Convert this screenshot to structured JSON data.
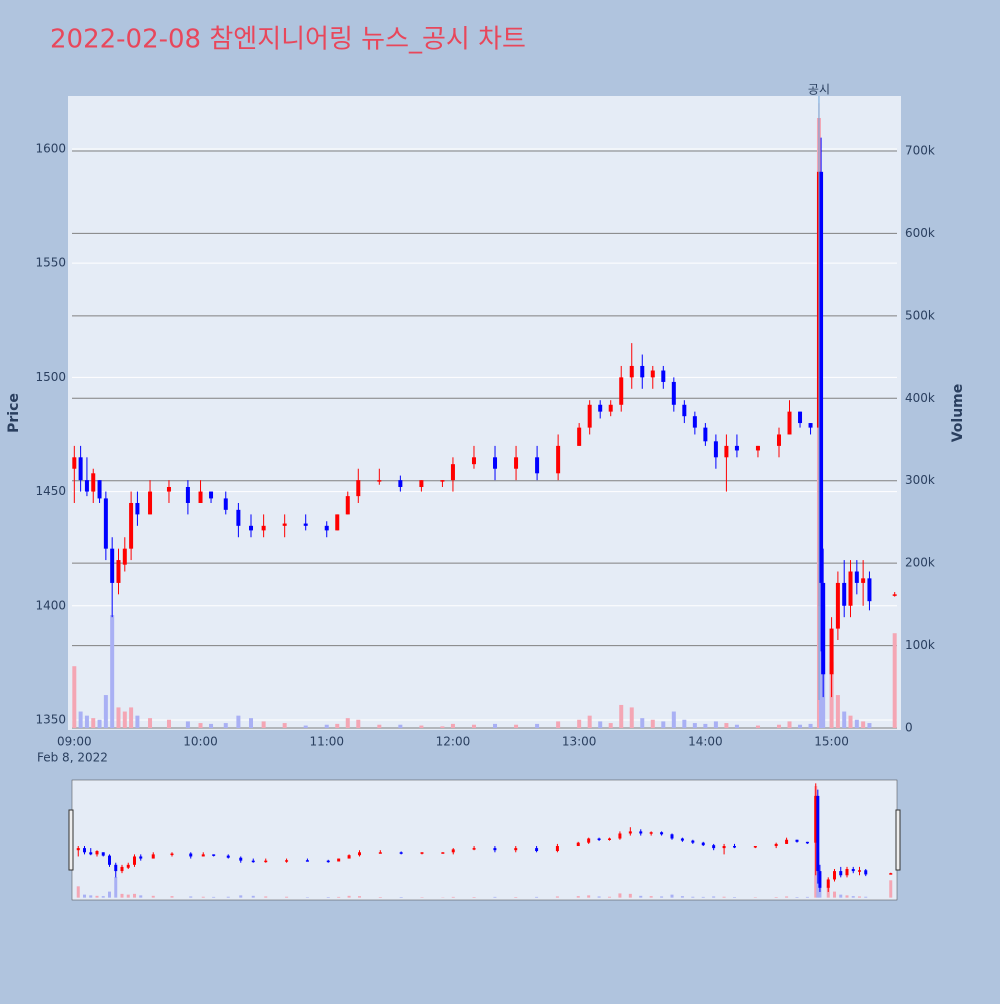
{
  "chart_data": {
    "type": "candlestick",
    "title": "2022-02-08 참엔지니어링 뉴스_공시 차트",
    "y_label": "Price",
    "y2_label": "Volume",
    "x_date_label": "Feb 8, 2022",
    "x": [
      "09:00",
      "09:03",
      "09:06",
      "09:09",
      "09:12",
      "09:15",
      "09:18",
      "09:21",
      "09:24",
      "09:27",
      "09:30",
      "09:36",
      "09:45",
      "09:54",
      "10:00",
      "10:05",
      "10:12",
      "10:18",
      "10:24",
      "10:30",
      "10:40",
      "10:50",
      "11:00",
      "11:05",
      "11:10",
      "11:15",
      "11:25",
      "11:35",
      "11:45",
      "11:55",
      "12:00",
      "12:10",
      "12:20",
      "12:30",
      "12:40",
      "12:50",
      "13:00",
      "13:05",
      "13:10",
      "13:15",
      "13:20",
      "13:25",
      "13:30",
      "13:35",
      "13:40",
      "13:45",
      "13:50",
      "13:55",
      "14:00",
      "14:05",
      "14:10",
      "14:15",
      "14:25",
      "14:35",
      "14:40",
      "14:45",
      "14:50",
      "14:54",
      "14:55",
      "14:56",
      "15:00",
      "15:03",
      "15:06",
      "15:09",
      "15:12",
      "15:15",
      "15:18",
      "15:30"
    ],
    "open": [
      1460,
      1465,
      1455,
      1450,
      1455,
      1447,
      1425,
      1410,
      1418,
      1425,
      1445,
      1440,
      1450,
      1452,
      1445,
      1450,
      1447,
      1442,
      1435,
      1433,
      1435,
      1436,
      1435,
      1433,
      1440,
      1448,
      1455,
      1455,
      1452,
      1455,
      1455,
      1462,
      1465,
      1460,
      1465,
      1458,
      1470,
      1478,
      1488,
      1485,
      1488,
      1500,
      1505,
      1500,
      1503,
      1498,
      1488,
      1483,
      1478,
      1472,
      1465,
      1470,
      1468,
      1470,
      1475,
      1485,
      1480,
      1478,
      1590,
      1410,
      1370,
      1390,
      1410,
      1400,
      1415,
      1410,
      1412,
      1405
    ],
    "high": [
      1470,
      1470,
      1465,
      1460,
      1455,
      1450,
      1430,
      1425,
      1430,
      1450,
      1450,
      1455,
      1455,
      1455,
      1455,
      1450,
      1450,
      1445,
      1440,
      1440,
      1440,
      1440,
      1437,
      1440,
      1450,
      1460,
      1460,
      1457,
      1455,
      1455,
      1465,
      1470,
      1470,
      1470,
      1470,
      1475,
      1480,
      1490,
      1490,
      1490,
      1505,
      1515,
      1510,
      1505,
      1505,
      1500,
      1490,
      1485,
      1480,
      1475,
      1475,
      1475,
      1470,
      1478,
      1490,
      1485,
      1480,
      1620,
      1605,
      1425,
      1395,
      1415,
      1420,
      1420,
      1420,
      1420,
      1415,
      1406
    ],
    "low": [
      1445,
      1450,
      1448,
      1445,
      1445,
      1420,
      1395,
      1405,
      1415,
      1420,
      1435,
      1440,
      1445,
      1440,
      1445,
      1445,
      1440,
      1430,
      1430,
      1430,
      1430,
      1433,
      1430,
      1433,
      1440,
      1445,
      1453,
      1450,
      1450,
      1452,
      1450,
      1460,
      1455,
      1455,
      1455,
      1455,
      1470,
      1475,
      1482,
      1483,
      1485,
      1495,
      1495,
      1495,
      1495,
      1485,
      1480,
      1475,
      1470,
      1460,
      1450,
      1465,
      1465,
      1465,
      1475,
      1478,
      1475,
      1400,
      1380,
      1360,
      1360,
      1385,
      1395,
      1395,
      1405,
      1400,
      1398,
      1404
    ],
    "close": [
      1465,
      1455,
      1450,
      1458,
      1447,
      1425,
      1410,
      1420,
      1425,
      1445,
      1440,
      1450,
      1452,
      1445,
      1450,
      1447,
      1442,
      1435,
      1433,
      1435,
      1436,
      1435,
      1433,
      1440,
      1448,
      1455,
      1455,
      1452,
      1455,
      1455,
      1462,
      1465,
      1460,
      1465,
      1458,
      1470,
      1478,
      1488,
      1485,
      1488,
      1500,
      1505,
      1500,
      1503,
      1498,
      1488,
      1483,
      1478,
      1472,
      1465,
      1470,
      1468,
      1470,
      1475,
      1485,
      1480,
      1478,
      1590,
      1410,
      1370,
      1390,
      1410,
      1400,
      1415,
      1410,
      1412,
      1402,
      1405
    ],
    "volume": [
      75000,
      20000,
      15000,
      12000,
      10000,
      40000,
      137000,
      25000,
      20000,
      25000,
      15000,
      12000,
      10000,
      8000,
      6000,
      5000,
      6000,
      15000,
      12000,
      8000,
      6000,
      3000,
      4000,
      5000,
      12000,
      10000,
      4000,
      4000,
      3000,
      2000,
      5000,
      4000,
      5000,
      4000,
      5000,
      8000,
      10000,
      15000,
      8000,
      6000,
      28000,
      25000,
      12000,
      10000,
      8000,
      20000,
      10000,
      6000,
      5000,
      8000,
      6000,
      4000,
      3000,
      4000,
      8000,
      4000,
      5000,
      740000,
      300000,
      150000,
      80000,
      40000,
      20000,
      15000,
      10000,
      8000,
      6000,
      115000
    ],
    "increasing_color": "#ff0000",
    "decreasing_color": "#0000ff",
    "volume_increasing_color": "#f4a6b4",
    "volume_decreasing_color": "#a9b0f4",
    "xlim": [
      "08:57",
      "15:33"
    ],
    "xticks": [
      "09:00",
      "10:00",
      "11:00",
      "12:00",
      "13:00",
      "14:00",
      "15:00"
    ],
    "ylim": [
      1345.6,
      1623.2
    ],
    "yticks": [
      1350,
      1400,
      1450,
      1500,
      1550,
      1600
    ],
    "y2lim": [
      -2400,
      766700
    ],
    "y2ticks": [
      0,
      {
        "value": 100000,
        "label": "100k"
      },
      {
        "value": 200000,
        "label": "200k"
      },
      {
        "value": 300000,
        "label": "300k"
      },
      {
        "value": 400000,
        "label": "400k"
      },
      {
        "value": 500000,
        "label": "500k"
      },
      {
        "value": 600000,
        "label": "600k"
      },
      {
        "value": 700000,
        "label": "700k"
      }
    ],
    "annotation": {
      "x": "14:54",
      "text": "공시"
    },
    "grid": true,
    "rangeslider": true
  }
}
